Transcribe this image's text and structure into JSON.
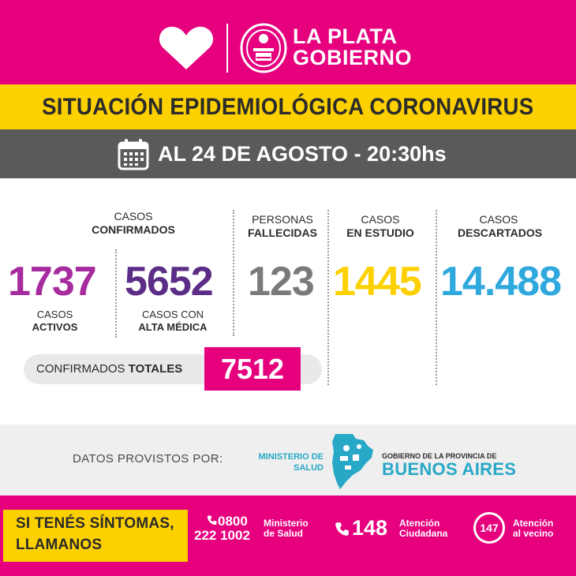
{
  "header": {
    "brand_line1": "LA PLATA",
    "brand_line2": "GOBIERNO",
    "brand_color": "#e6007e"
  },
  "title": "SITUACIÓN EPIDEMIOLÓGICA CORONAVIRUS",
  "date_line": "AL 24 DE AGOSTO - 20:30hs",
  "stats": {
    "confirmados": {
      "label_plain": "CASOS",
      "label_bold": "CONFIRMADOS"
    },
    "activos": {
      "value": "1737",
      "label_plain": "CASOS",
      "label_bold": "ACTIVOS",
      "color": "#a62b9e"
    },
    "alta": {
      "value": "5652",
      "label_plain": "CASOS CON",
      "label_bold": "ALTA MÉDICA",
      "color": "#5b2d86"
    },
    "fallecidas": {
      "value": "123",
      "label_plain": "PERSONAS",
      "label_bold": "FALLECIDAS",
      "color": "#7a7a7a"
    },
    "estudio": {
      "value": "1445",
      "label_plain": "CASOS",
      "label_bold": "EN ESTUDIO",
      "color": "#fdd000"
    },
    "descartados": {
      "value": "14.488",
      "label_plain": "CASOS",
      "label_bold": "DESCARTADOS",
      "color": "#2fa8de"
    }
  },
  "totals": {
    "label_plain": "CONFIRMADOS ",
    "label_bold": "TOTALES",
    "value": "7512"
  },
  "providers": {
    "provided_by": "DATOS PROVISTOS POR:",
    "ministerio_line1": "MINISTERIO DE",
    "ministerio_line2": "SALUD",
    "gob_prov": "GOBIERNO DE LA PROVINCIA DE",
    "buenos_aires": "BUENOS AIRES"
  },
  "footer": {
    "sintomas_line1": "SI TENÉS SÍNTOMAS,",
    "sintomas_line2": "LLAMANOS",
    "phone1_line1": "0800",
    "phone1_line2": "222 1002",
    "phone1_desc1": "Ministerio",
    "phone1_desc2": "de Salud",
    "phone2": "148",
    "phone2_desc1": "Atención",
    "phone2_desc2": "Ciudadana",
    "phone3": "147",
    "phone3_desc1": "Atención",
    "phone3_desc2": "al vecino"
  },
  "icons": [
    "heart-logo-icon",
    "city-seal-icon",
    "calendar-icon",
    "province-map-icon",
    "phone-icon"
  ]
}
